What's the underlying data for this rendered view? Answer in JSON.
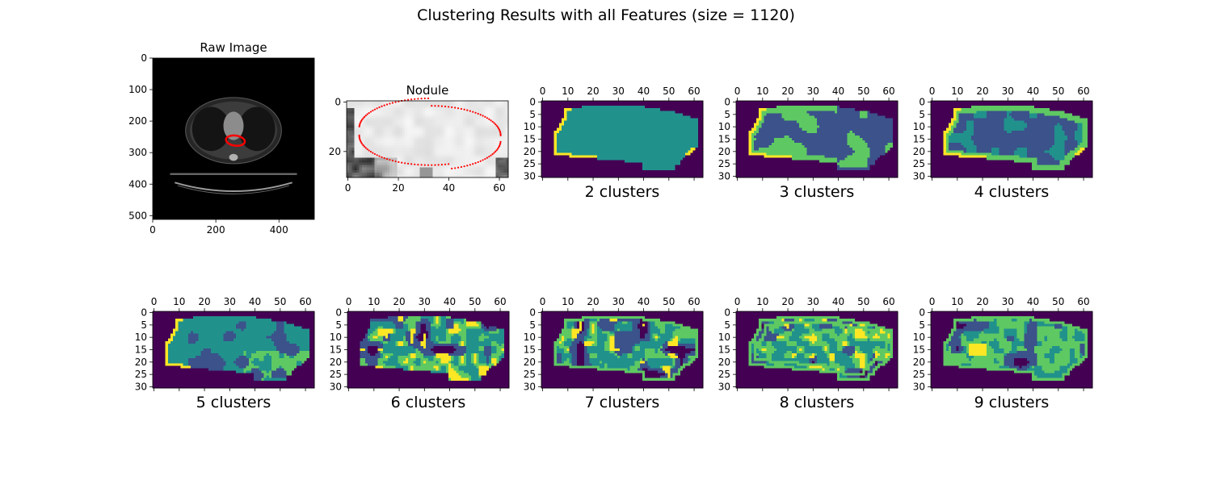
{
  "title": "Clustering Results with all Features (size = 1120)",
  "colors": {
    "viridis": [
      "#440154",
      "#3b528b",
      "#21918c",
      "#5ec962",
      "#fde725"
    ],
    "contour": "#ff0000"
  },
  "chart_data": [
    {
      "type": "image",
      "panel": "raw",
      "title": "Raw Image",
      "xlim": [
        0,
        512
      ],
      "ylim": [
        512,
        0
      ],
      "xticks": [
        0,
        200,
        400
      ],
      "yticks": [
        0,
        100,
        200,
        300,
        400,
        500
      ],
      "contour_center": [
        262,
        262
      ]
    },
    {
      "type": "image",
      "panel": "nodule",
      "title": "Nodule",
      "xlim": [
        0,
        64
      ],
      "ylim": [
        31,
        0
      ],
      "xticks": [
        0,
        20,
        40,
        60
      ],
      "yticks": [
        0,
        20
      ]
    },
    {
      "type": "heatmap",
      "panel": "cluster",
      "k": 2,
      "label": "2 clusters",
      "xticks": [
        0,
        10,
        20,
        30,
        40,
        50,
        60
      ],
      "yticks": [
        0,
        5,
        10,
        15,
        20,
        25,
        30
      ]
    },
    {
      "type": "heatmap",
      "panel": "cluster",
      "k": 3,
      "label": "3 clusters",
      "xticks": [
        0,
        10,
        20,
        30,
        40,
        50,
        60
      ],
      "yticks": [
        0,
        5,
        10,
        15,
        20,
        25,
        30
      ]
    },
    {
      "type": "heatmap",
      "panel": "cluster",
      "k": 4,
      "label": "4 clusters",
      "xticks": [
        0,
        10,
        20,
        30,
        40,
        50,
        60
      ],
      "yticks": [
        0,
        5,
        10,
        15,
        20,
        25,
        30
      ]
    },
    {
      "type": "heatmap",
      "panel": "cluster",
      "k": 5,
      "label": "5 clusters",
      "xticks": [
        0,
        10,
        20,
        30,
        40,
        50,
        60
      ],
      "yticks": [
        0,
        5,
        10,
        15,
        20,
        25,
        30
      ]
    },
    {
      "type": "heatmap",
      "panel": "cluster",
      "k": 6,
      "label": "6 clusters",
      "xticks": [
        0,
        10,
        20,
        30,
        40,
        50,
        60
      ],
      "yticks": [
        0,
        5,
        10,
        15,
        20,
        25,
        30
      ]
    },
    {
      "type": "heatmap",
      "panel": "cluster",
      "k": 7,
      "label": "7 clusters",
      "xticks": [
        0,
        10,
        20,
        30,
        40,
        50,
        60
      ],
      "yticks": [
        0,
        5,
        10,
        15,
        20,
        25,
        30
      ]
    },
    {
      "type": "heatmap",
      "panel": "cluster",
      "k": 8,
      "label": "8 clusters",
      "xticks": [
        0,
        10,
        20,
        30,
        40,
        50,
        60
      ],
      "yticks": [
        0,
        5,
        10,
        15,
        20,
        25,
        30
      ]
    },
    {
      "type": "heatmap",
      "panel": "cluster",
      "k": 9,
      "label": "9 clusters",
      "xticks": [
        0,
        10,
        20,
        30,
        40,
        50,
        60
      ],
      "yticks": [
        0,
        5,
        10,
        15,
        20,
        25,
        30
      ]
    }
  ]
}
